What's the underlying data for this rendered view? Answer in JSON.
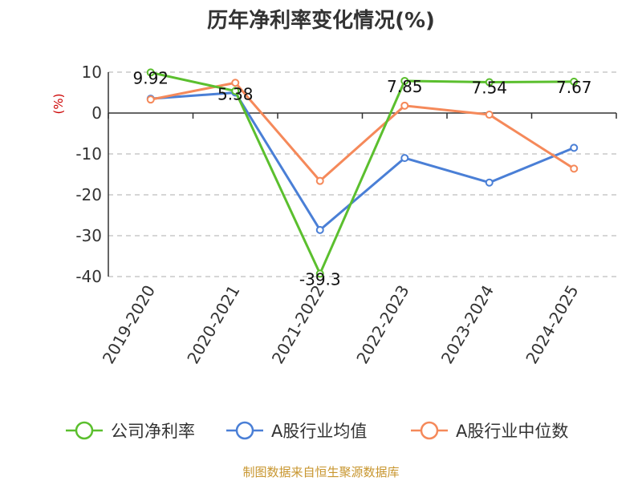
{
  "chart_data": {
    "type": "line",
    "title": "历年净利率变化情况(%)",
    "ylabel": "(%)",
    "categories": [
      "2019-2020",
      "2020-2021",
      "2021-2022",
      "2022-2023",
      "2023-2024",
      "2024-2025"
    ],
    "ylim": [
      -40,
      10
    ],
    "yticks": [
      10,
      0,
      -10,
      -20,
      -30,
      -40
    ],
    "grid": true,
    "legend_position": "bottom",
    "series": [
      {
        "name": "公司净利率",
        "color": "#5bbf2e",
        "values": [
          9.92,
          5.38,
          -39.3,
          7.85,
          7.54,
          7.67
        ],
        "labels": [
          "9.92",
          "5.38",
          "-39.3",
          "7.85",
          "7.54",
          "7.67"
        ]
      },
      {
        "name": "A股行业均值",
        "color": "#4a7fd6",
        "values": [
          3.5,
          5.0,
          -28.6,
          -11.0,
          -17.0,
          -8.5
        ]
      },
      {
        "name": "A股行业中位数",
        "color": "#f5895a",
        "values": [
          3.3,
          7.4,
          -16.6,
          1.8,
          -0.4,
          -13.6
        ]
      }
    ],
    "source": "制图数据来自恒生聚源数据库"
  }
}
